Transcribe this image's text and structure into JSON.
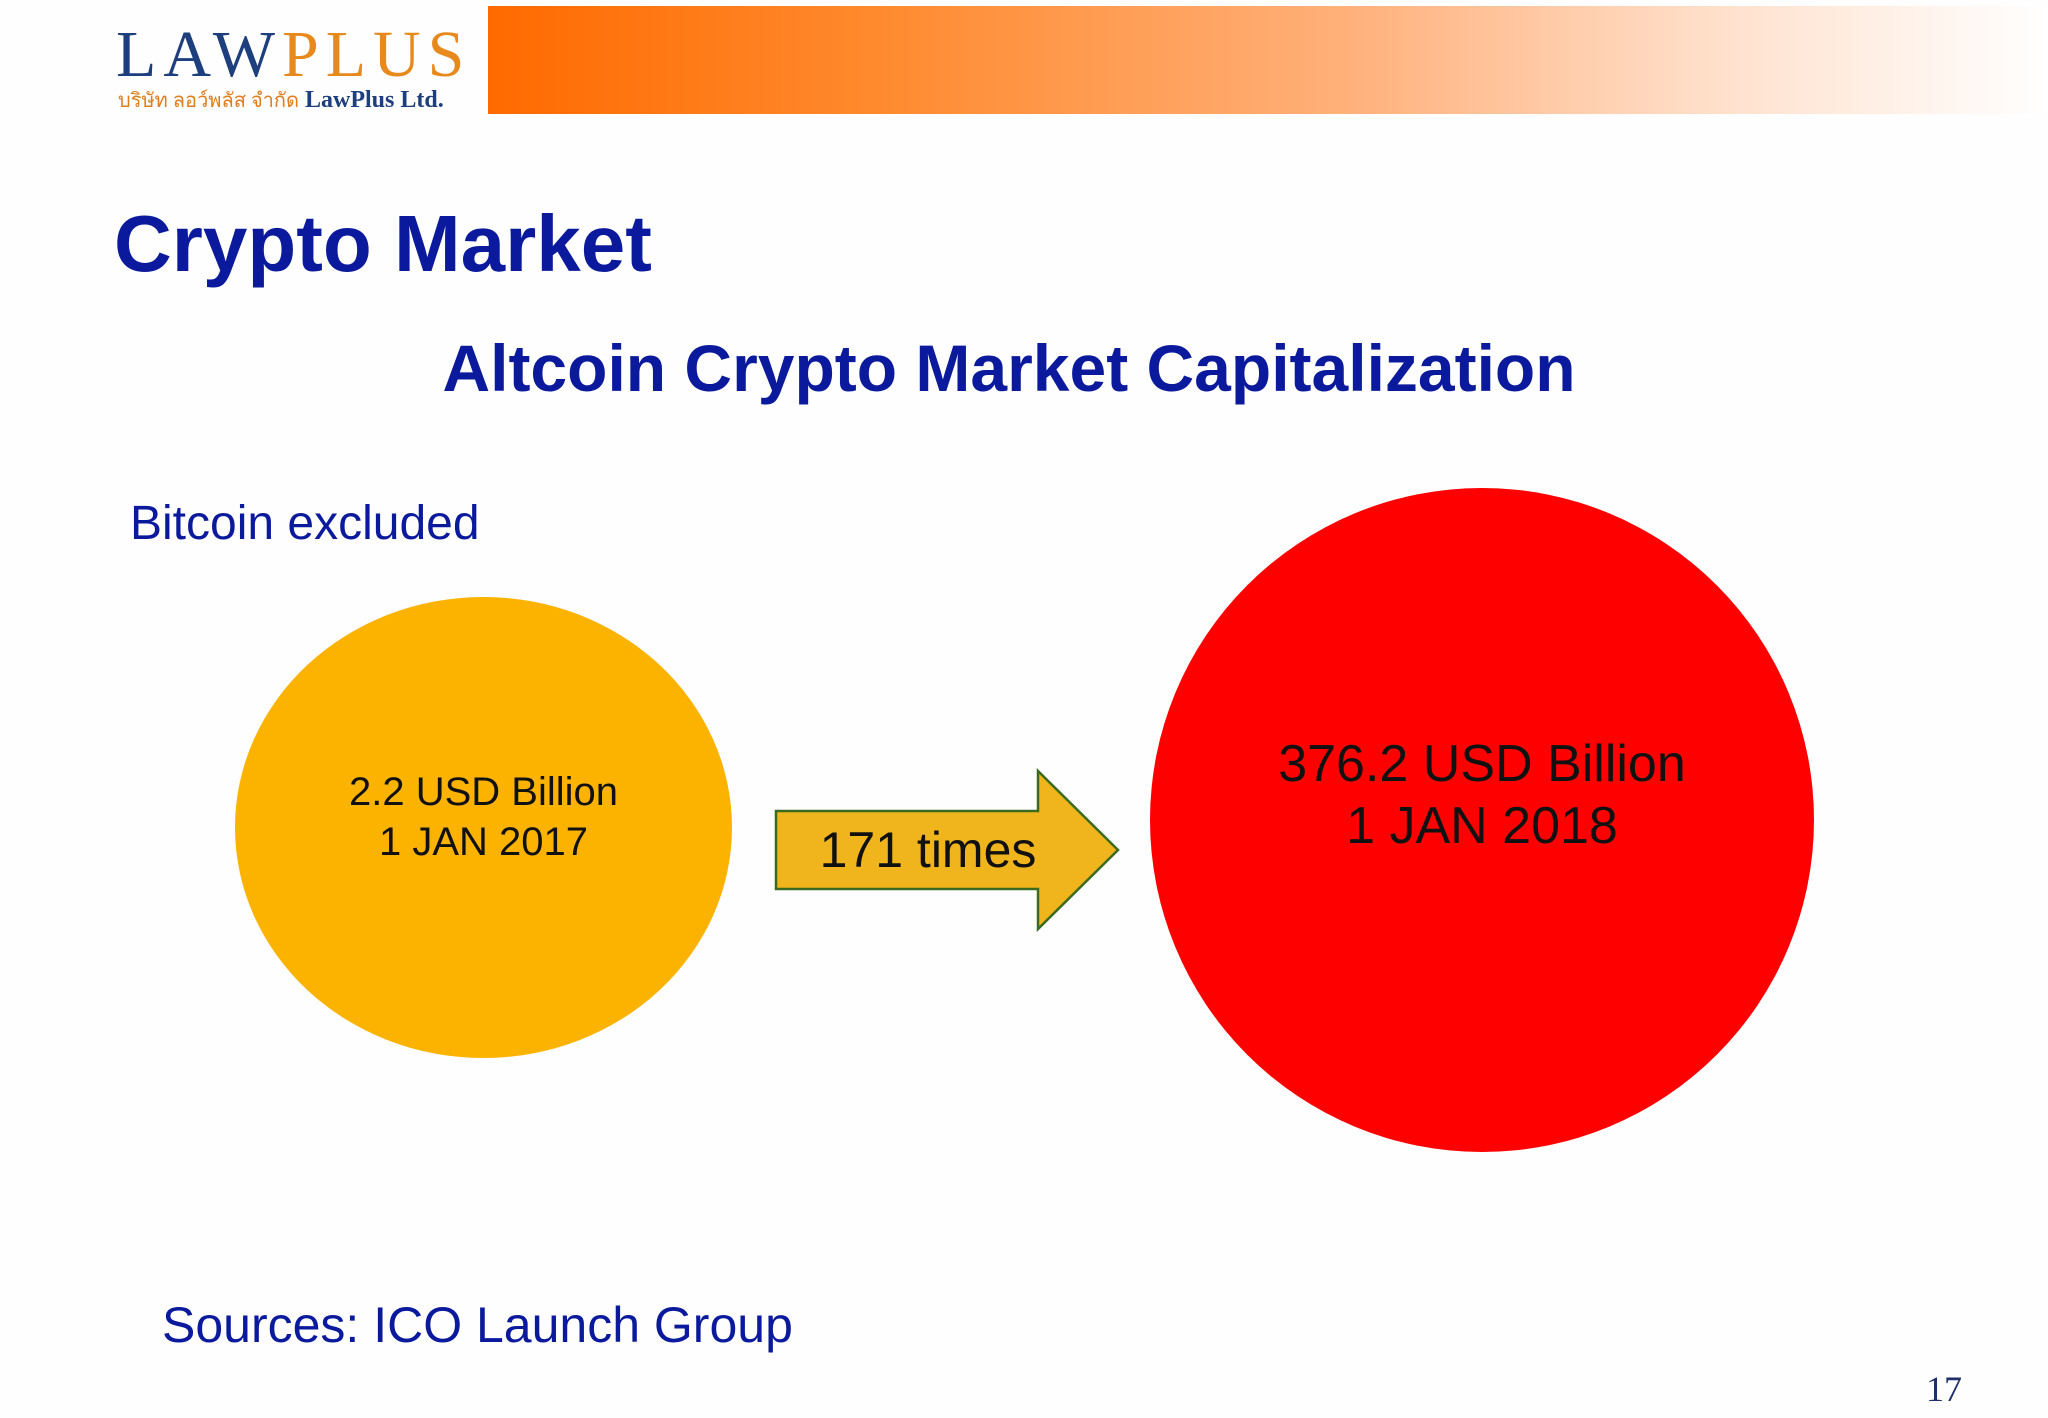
{
  "header": {
    "logo_law": "LAW",
    "logo_plus": "PLUS",
    "logo_thai": "บริษัท ลอว์พลัส จำกัด",
    "logo_company": "LawPlus Ltd."
  },
  "slide": {
    "title": "Crypto Market",
    "subtitle": "Altcoin Crypto Market Capitalization",
    "note": "Bitcoin excluded",
    "sources": "Sources:  ICO Launch Group",
    "page_number": "17"
  },
  "comparison": {
    "before": {
      "value": "2.2 USD Billion",
      "date": "1 JAN 2017",
      "color": "#fbb300"
    },
    "after": {
      "value": "376.2 USD Billion",
      "date": "1 JAN 2018",
      "color": "#ff0000"
    },
    "growth_label": "171 times",
    "arrow_color": "#f0b41c"
  },
  "colors": {
    "title": "#0b1a9c",
    "header_bar": "#ff6a00"
  }
}
